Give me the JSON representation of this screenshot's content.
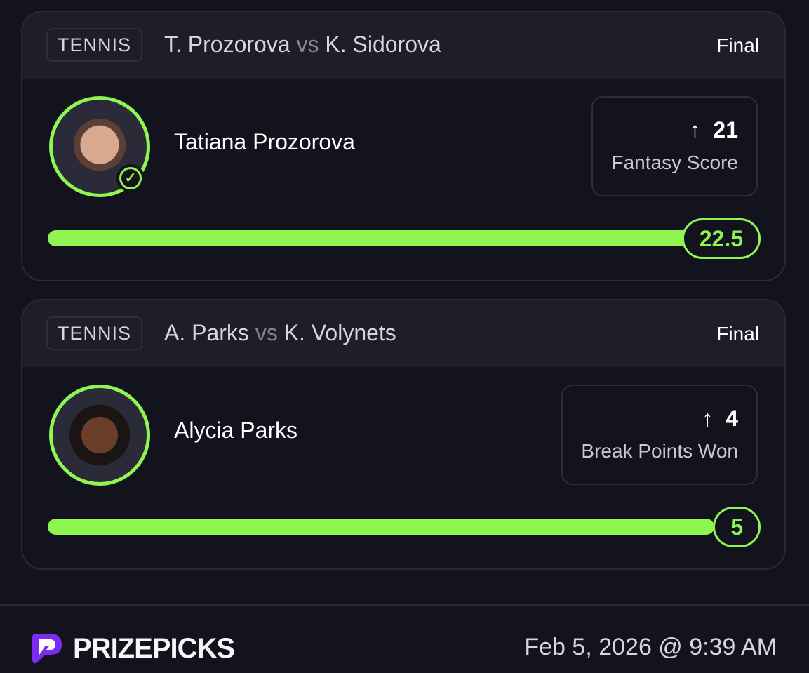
{
  "accent": "#8ef551",
  "cards": [
    {
      "sport": "TENNIS",
      "player1": "T. Prozorova",
      "vs": "vs",
      "player2": "K. Sidorova",
      "status": "Final",
      "player_name": "Tatiana Prozorova",
      "verified": true,
      "stat_value": "21",
      "stat_direction": "up",
      "stat_label": "Fantasy Score",
      "line": "22.5",
      "progress_pct": 100
    },
    {
      "sport": "TENNIS",
      "player1": "A. Parks",
      "vs": "vs",
      "player2": "K. Volynets",
      "status": "Final",
      "player_name": "Alycia Parks",
      "verified": false,
      "stat_value": "4",
      "stat_direction": "up",
      "stat_label": "Break Points Won",
      "line": "5",
      "progress_pct": 100
    }
  ],
  "footer": {
    "brand": "PRIZEPICKS",
    "timestamp": "Feb 5, 2026 @ 9:39 AM"
  }
}
